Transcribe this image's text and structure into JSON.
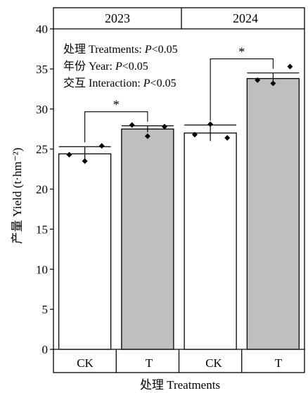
{
  "chart_data": {
    "type": "bar",
    "panels": [
      {
        "label": "2023",
        "categories": [
          "CK",
          "T"
        ],
        "values": [
          24.4,
          27.5
        ],
        "errors": [
          0.9,
          0.4
        ],
        "points": [
          [
            24.3,
            23.5,
            25.4
          ],
          [
            28.0,
            26.6,
            27.8
          ]
        ],
        "significance": "*"
      },
      {
        "label": "2024",
        "categories": [
          "CK",
          "T"
        ],
        "values": [
          27.0,
          33.8
        ],
        "errors": [
          1.0,
          0.7
        ],
        "points": [
          [
            26.8,
            28.1,
            26.4
          ],
          [
            33.6,
            33.2,
            35.3
          ]
        ],
        "significance": "*"
      }
    ],
    "ylabel": "产量 Yield (t·hm⁻²)",
    "xlabel": "处理 Treatments",
    "ylim": [
      0,
      40
    ],
    "yticks": [
      0,
      5,
      10,
      15,
      20,
      25,
      30,
      35,
      40
    ],
    "stats": [
      {
        "cn": "处理",
        "label": "Treatments: ",
        "p": "P",
        "rest": "<0.05"
      },
      {
        "cn": "年份",
        "label": "Year: ",
        "p": "P",
        "rest": "<0.05"
      },
      {
        "cn": "交互",
        "label": "Interaction: ",
        "p": "P",
        "rest": "<0.05"
      }
    ],
    "colors": {
      "CK": "#ffffff",
      "T": "#bfbfbf",
      "stroke": "#000000"
    }
  }
}
